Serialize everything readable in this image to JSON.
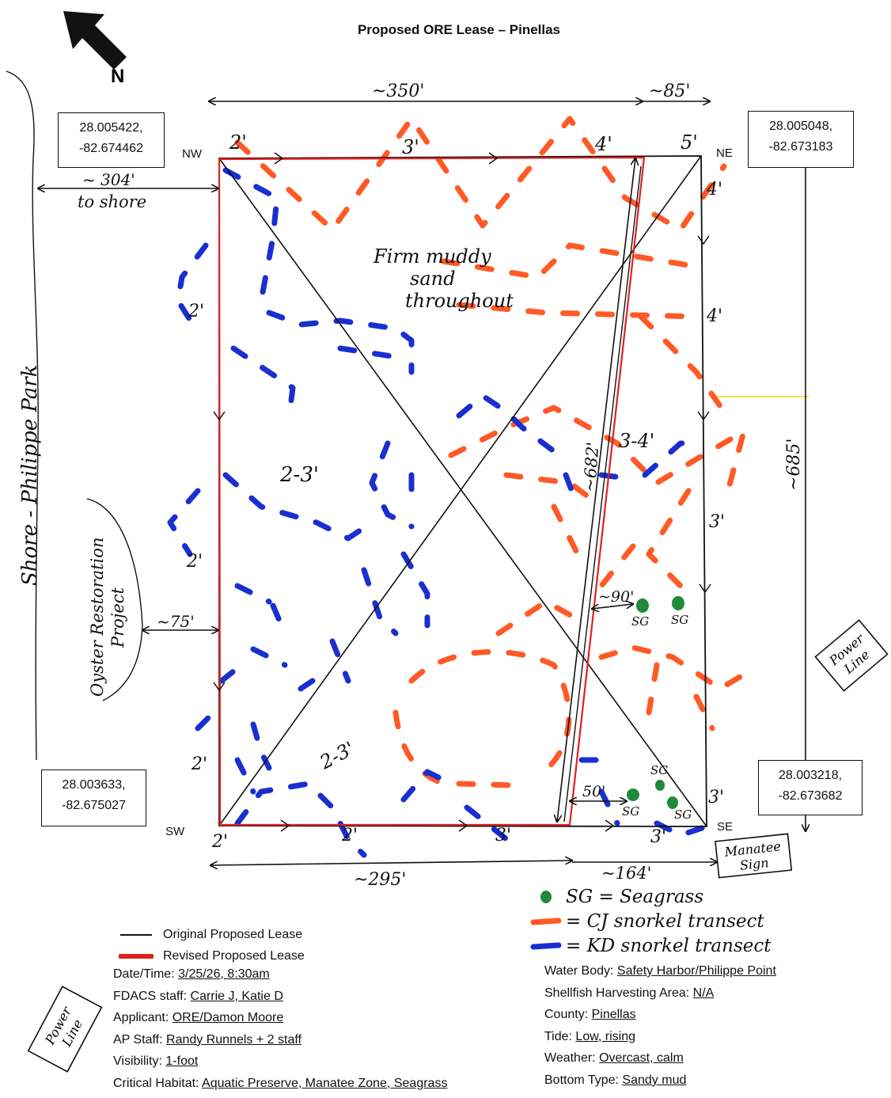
{
  "title": "Proposed ORE Lease – Pinellas",
  "north_label": "N",
  "corners": {
    "nw": {
      "label": "NW",
      "lat": "28.005422,",
      "lon": "-82.674462"
    },
    "ne": {
      "label": "NE",
      "lat": "28.005048,",
      "lon": "-82.673183"
    },
    "sw": {
      "label": "SW",
      "lat": "28.003633,",
      "lon": "-82.675027"
    },
    "se": {
      "label": "SE",
      "lat": "28.003218,",
      "lon": "-82.673682"
    }
  },
  "dimensions": {
    "top_width": "~350'",
    "top_ext": "~85'",
    "bottom_width": "~295'",
    "bottom_ext": "~164'",
    "east_length": "~685'",
    "inner_length": "~682'",
    "to_shore": "~ 304'",
    "to_shore_2": "to shore",
    "to_oyster": "~75'",
    "to_seagrass_n": "~90'",
    "to_seagrass_s": "50'"
  },
  "features": {
    "shore": "Shore - Philippe Park",
    "oyster": [
      "Oyster Restoration",
      "Project"
    ],
    "power_line": [
      "Power",
      "Line"
    ],
    "manatee": [
      "Manatee",
      "Sign"
    ],
    "note": [
      "Firm muddy",
      "sand",
      "throughout"
    ]
  },
  "depths": {
    "nw": "2'",
    "n1": "3'",
    "n2": "4'",
    "ne": "5'",
    "ne2": "4'",
    "e1": "4'",
    "e2": "3'",
    "mid_e": "3-4'",
    "w1": "2'",
    "w2": "2'",
    "w3": "2'",
    "mid_w": "2-3'",
    "sw_in": "2-3'",
    "sw": "2'",
    "s1": "2'",
    "s2": "3'",
    "se": "3'",
    "se2": "3'"
  },
  "seagrass_label": "SG",
  "legend": {
    "original": "Original Proposed Lease",
    "revised": "Revised Proposed Lease",
    "colors": {
      "original": "#111111",
      "revised": "#e02020",
      "cj": "#ff5a26",
      "kd": "#1a2fd0",
      "sg": "#1f8a3a"
    }
  },
  "hand_legend": {
    "sg": "SG = Seagrass",
    "cj": "= CJ snorkel transect",
    "kd": "= KD snorkel transect"
  },
  "info_left": [
    {
      "label": "Date/Time: ",
      "value": "3/25/26, 8:30am"
    },
    {
      "label": "FDACS staff: ",
      "value": "Carrie J, Katie D"
    },
    {
      "label": "Applicant: ",
      "value": "ORE/Damon Moore"
    },
    {
      "label": "AP Staff: ",
      "value": "Randy Runnels + 2 staff"
    },
    {
      "label": "Visibility: ",
      "value": "1-foot"
    },
    {
      "label": "Critical Habitat: ",
      "value": "Aquatic Preserve, Manatee Zone, Seagrass"
    }
  ],
  "info_right": [
    {
      "label": "Water Body: ",
      "value": "Safety Harbor/Philippe Point"
    },
    {
      "label": "Shellfish Harvesting Area: ",
      "value": "N/A"
    },
    {
      "label": "County: ",
      "value": "Pinellas"
    },
    {
      "label": "Tide: ",
      "value": "Low, rising"
    },
    {
      "label": "Weather: ",
      "value": "Overcast, calm"
    },
    {
      "label": "Bottom Type: ",
      "value": "Sandy mud"
    }
  ]
}
